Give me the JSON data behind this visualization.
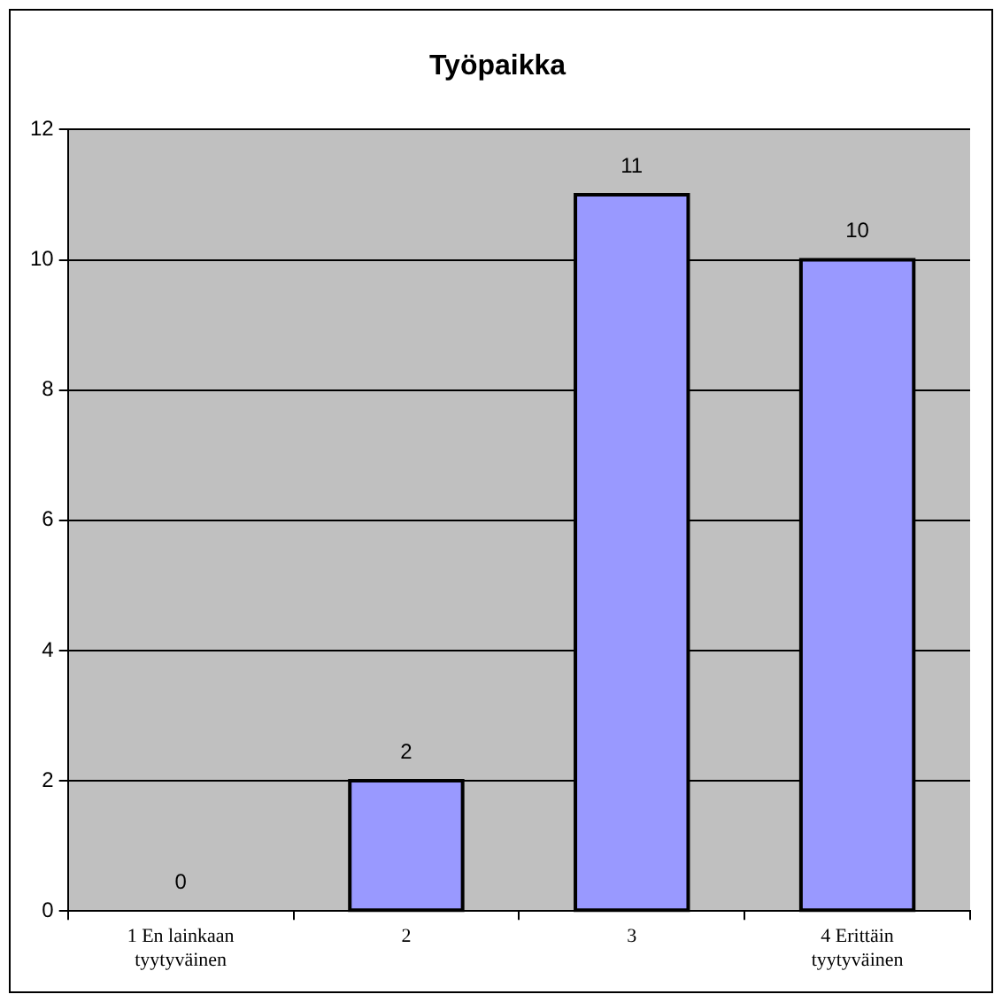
{
  "chart_data": {
    "type": "bar",
    "title": "Työpaikka",
    "categories": [
      "1 En lainkaan tyytyväinen",
      "2",
      "3",
      "4 Erittäin tyytyväinen"
    ],
    "values": [
      0,
      2,
      11,
      10
    ],
    "color": "#9999ff",
    "ylim": [
      0,
      12
    ],
    "yticks": [
      0,
      2,
      4,
      6,
      8,
      10,
      12
    ],
    "grid": "y",
    "data_labels": true,
    "legend": false
  }
}
